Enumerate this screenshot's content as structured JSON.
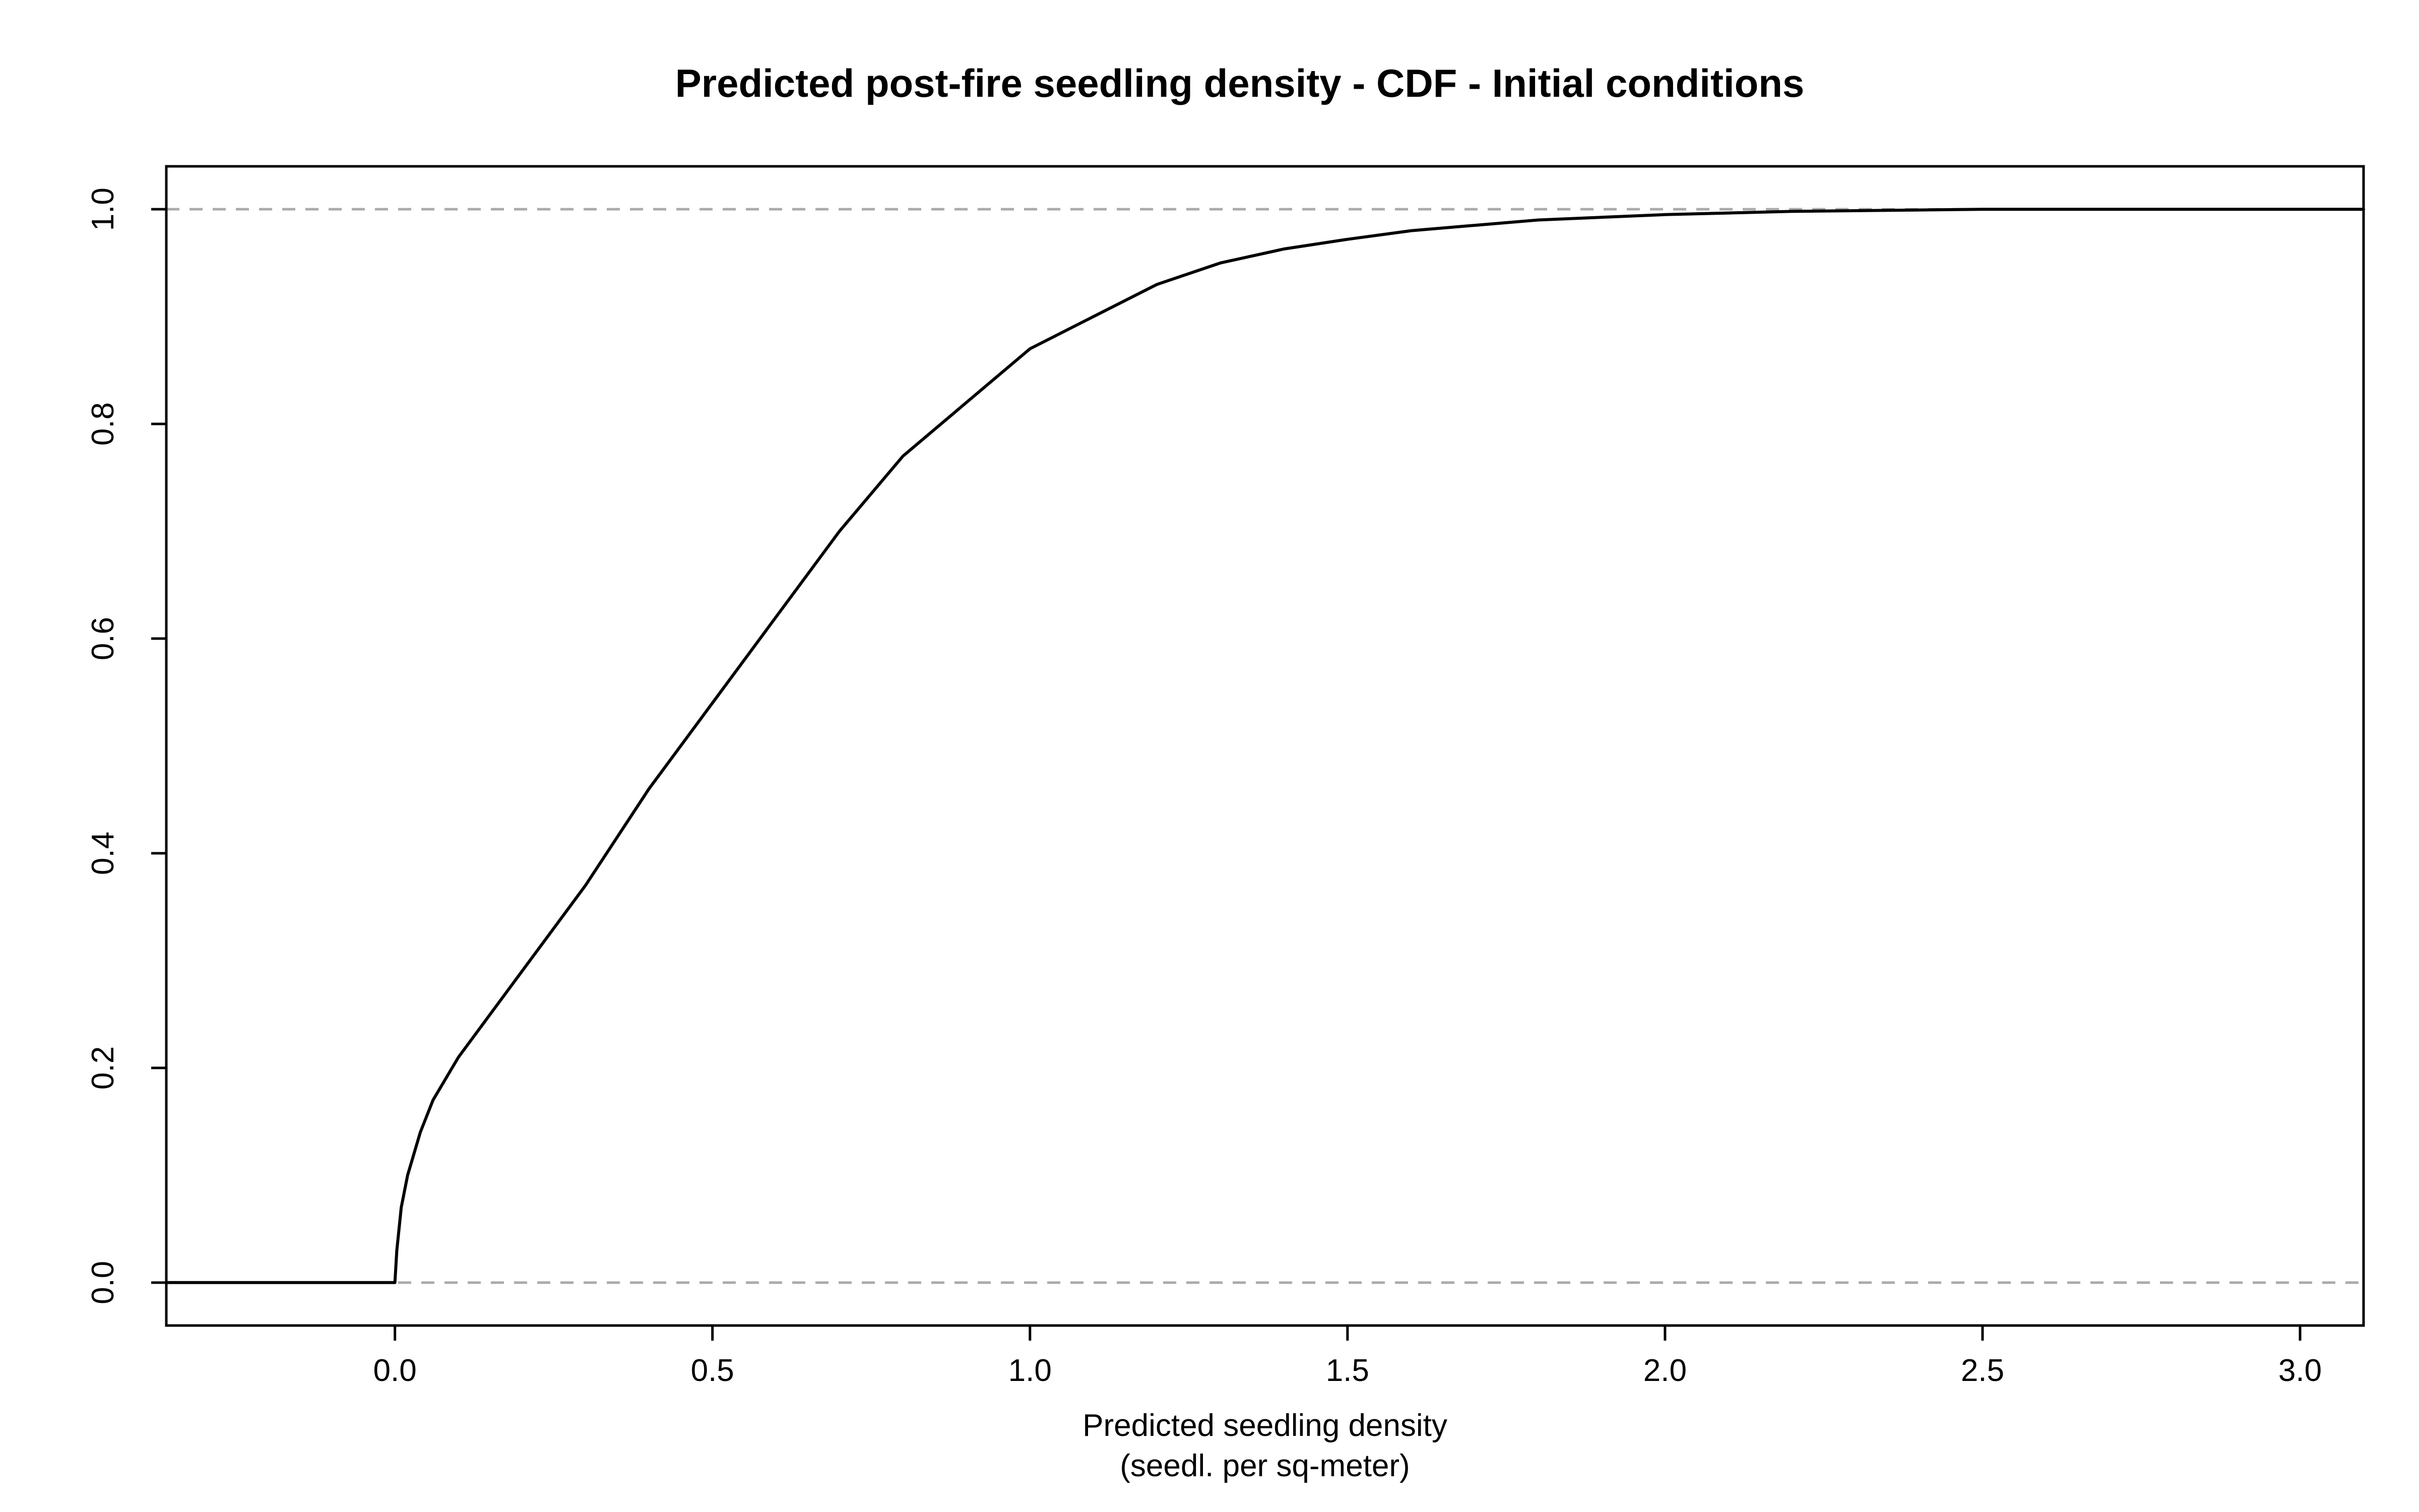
{
  "chart_data": {
    "type": "line",
    "title": "Predicted post-fire seedling density - CDF - Initial conditions",
    "xlabel": "Predicted seedling density",
    "xlabel_line2": "(seedl. per sq-meter)",
    "ylabel": "",
    "xlim": [
      -0.36,
      3.1
    ],
    "ylim": [
      -0.04,
      1.04
    ],
    "x_ticks": [
      0.0,
      0.5,
      1.0,
      1.5,
      2.0,
      2.5,
      3.0
    ],
    "x_tick_labels": [
      "0.0",
      "0.5",
      "1.0",
      "1.5",
      "2.0",
      "2.5",
      "3.0"
    ],
    "y_ticks": [
      0.0,
      0.2,
      0.4,
      0.6,
      0.8,
      1.0
    ],
    "y_tick_labels": [
      "0.0",
      "0.2",
      "0.4",
      "0.6",
      "0.8",
      "1.0"
    ],
    "reference_lines": [
      {
        "y": 0.0,
        "style": "dashed",
        "color": "#aaaaaa"
      },
      {
        "y": 1.0,
        "style": "dashed",
        "color": "#aaaaaa"
      }
    ],
    "grid": false,
    "series": [
      {
        "color": "#000000",
        "points": [
          [
            -0.36,
            0.0
          ],
          [
            0.0,
            0.0
          ],
          [
            0.003,
            0.03
          ],
          [
            0.01,
            0.07
          ],
          [
            0.02,
            0.1
          ],
          [
            0.04,
            0.14
          ],
          [
            0.06,
            0.17
          ],
          [
            0.1,
            0.21
          ],
          [
            0.15,
            0.25
          ],
          [
            0.2,
            0.29
          ],
          [
            0.3,
            0.37
          ],
          [
            0.4,
            0.46
          ],
          [
            0.5,
            0.54
          ],
          [
            0.6,
            0.62
          ],
          [
            0.7,
            0.7
          ],
          [
            0.8,
            0.77
          ],
          [
            0.9,
            0.82
          ],
          [
            1.0,
            0.87
          ],
          [
            1.1,
            0.9
          ],
          [
            1.2,
            0.93
          ],
          [
            1.3,
            0.95
          ],
          [
            1.4,
            0.963
          ],
          [
            1.5,
            0.972
          ],
          [
            1.6,
            0.98
          ],
          [
            1.7,
            0.985
          ],
          [
            1.8,
            0.99
          ],
          [
            2.0,
            0.995
          ],
          [
            2.2,
            0.998
          ],
          [
            2.5,
            1.0
          ],
          [
            3.1,
            1.0
          ]
        ]
      }
    ]
  }
}
